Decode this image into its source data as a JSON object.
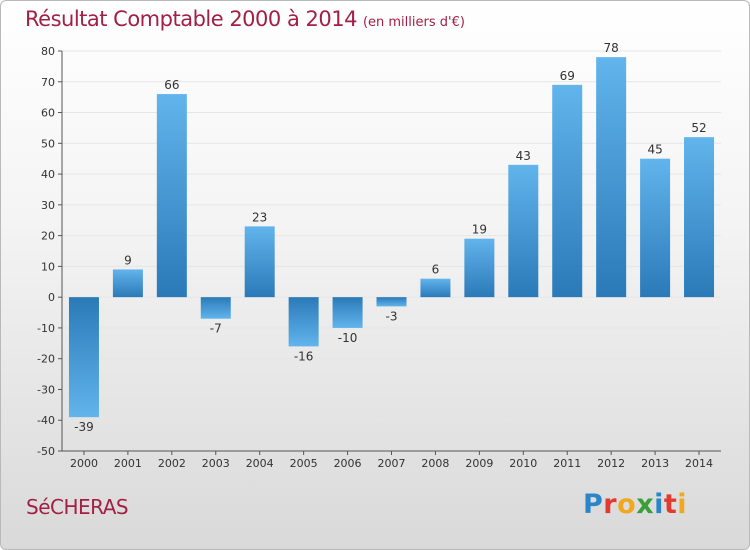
{
  "header": {
    "title": "Résultat Comptable 2000 à 2014",
    "unit": "(en milliers d'€)"
  },
  "footer": {
    "city": "SéCHERAS",
    "logo_letters": [
      "P",
      "r",
      "o",
      "x",
      "i",
      "t",
      "i"
    ],
    "logo_colors": [
      "#2a86c9",
      "#e23a2e",
      "#f0a81c",
      "#3a9f3a",
      "#2a86c9",
      "#e23a2e",
      "#f0a81c"
    ]
  },
  "colors": {
    "title": "#a22046",
    "bar_light": "#62b4ec",
    "bar_dark": "#2a7ab8",
    "axis_text": "#333333",
    "gridline": "#e6e6e6"
  },
  "chart_data": {
    "type": "bar",
    "title": "Résultat Comptable 2000 à 2014",
    "ylabel": "en milliers d'€",
    "xlabel": "",
    "categories": [
      "2000",
      "2001",
      "2002",
      "2003",
      "2004",
      "2005",
      "2006",
      "2007",
      "2008",
      "2009",
      "2010",
      "2011",
      "2012",
      "2013",
      "2014"
    ],
    "values": [
      -39,
      9,
      66,
      -7,
      23,
      -16,
      -10,
      -3,
      6,
      19,
      43,
      69,
      78,
      45,
      52
    ],
    "value_labels": [
      "-39",
      "9",
      "66",
      "-7",
      "23",
      "-16",
      "-10",
      "-3",
      "6",
      "19",
      "43",
      "69",
      "78",
      "45",
      "52"
    ],
    "ylim": [
      -50,
      80
    ],
    "yticks": [
      80,
      70,
      60,
      50,
      40,
      30,
      20,
      10,
      0,
      -10,
      -20,
      -30,
      -40,
      -50
    ],
    "grid": true
  }
}
